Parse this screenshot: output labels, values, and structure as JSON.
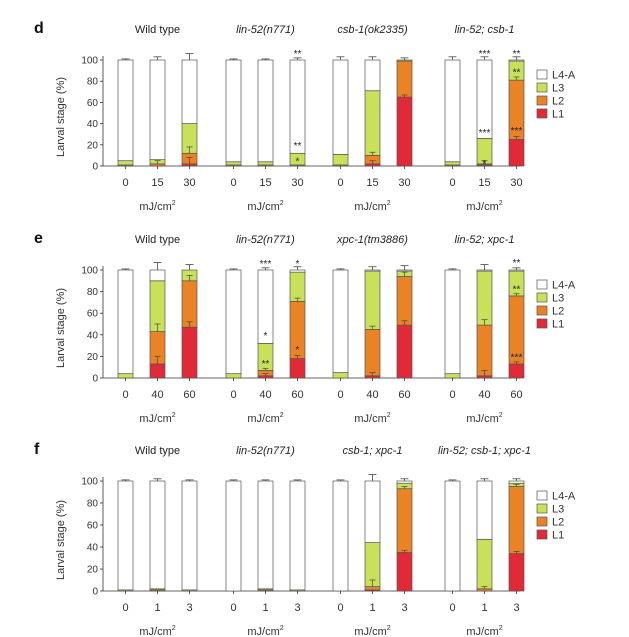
{
  "chart_data": {
    "type": "bar",
    "stacked": true,
    "ylabel": "Larval stage (%)",
    "ylim": [
      0,
      100
    ],
    "yticks": [
      0,
      20,
      40,
      60,
      80,
      100
    ],
    "legend": {
      "placement": "right",
      "entries": [
        {
          "key": "L4A",
          "label": "L4-A",
          "color": "#ffffff"
        },
        {
          "key": "L3",
          "label": "L3",
          "color": "#c9e05b"
        },
        {
          "key": "L2",
          "label": "L2",
          "color": "#ea8226"
        },
        {
          "key": "L1",
          "label": "L1",
          "color": "#e02a37"
        }
      ]
    },
    "colors": {
      "L4A": "#ffffff",
      "L3": "#c9e05b",
      "L2": "#ea8226",
      "L1": "#e02a37",
      "axis": "#333333"
    },
    "panels": [
      {
        "letter": "d",
        "unit_label": "mJ/cm",
        "unit_sup": "2",
        "groups": [
          {
            "title": "Wild type",
            "italic": false,
            "doses": [
              "0",
              "15",
              "30"
            ],
            "bars": [
              {
                "L1": 0,
                "L2": 1,
                "L3": 4,
                "L4A": 95,
                "err": 1,
                "stars": []
              },
              {
                "L1": 0,
                "L2": 2,
                "L3": 4,
                "L4A": 94,
                "err": 3,
                "stars": []
              },
              {
                "L1": 2,
                "L2": 10,
                "L3": 28,
                "L4A": 60,
                "err": 6,
                "stars": []
              }
            ]
          },
          {
            "title": "lin-52(n771)",
            "italic": true,
            "doses": [
              "0",
              "15",
              "30"
            ],
            "bars": [
              {
                "L1": 0,
                "L2": 1,
                "L3": 3,
                "L4A": 96,
                "err": 1,
                "stars": []
              },
              {
                "L1": 0,
                "L2": 1,
                "L3": 3,
                "L4A": 96,
                "err": 1,
                "stars": []
              },
              {
                "L1": 0,
                "L2": 1,
                "L3": 11,
                "L4A": 88,
                "err": 2,
                "stars": [
                  {
                    "text": "**",
                    "at": 100
                  },
                  {
                    "text": "**",
                    "at": 20
                  },
                  {
                    "text": "*",
                    "at": 5
                  }
                ]
              }
            ]
          },
          {
            "title": "csb-1(ok2335)",
            "italic": true,
            "doses": [
              "0",
              "15",
              "30"
            ],
            "bars": [
              {
                "L1": 0,
                "L2": 1,
                "L3": 10,
                "L4A": 89,
                "err": 3,
                "stars": []
              },
              {
                "L1": 2,
                "L2": 8,
                "L3": 61,
                "L4A": 29,
                "err": 3,
                "stars": []
              },
              {
                "L1": 65,
                "L2": 34,
                "L3": 1,
                "L4A": 0,
                "err": 2,
                "stars": []
              }
            ]
          },
          {
            "title": "lin-52; csb-1",
            "italic": true,
            "doses": [
              "0",
              "15",
              "30"
            ],
            "bars": [
              {
                "L1": 0,
                "L2": 1,
                "L3": 3,
                "L4A": 96,
                "err": 3,
                "stars": []
              },
              {
                "L1": 1,
                "L2": 1,
                "L3": 24,
                "L4A": 74,
                "err": 3,
                "stars": [
                  {
                    "text": "***",
                    "at": 100
                  },
                  {
                    "text": "***",
                    "at": 32
                  },
                  {
                    "text": "*",
                    "at": 3
                  }
                ]
              },
              {
                "L1": 25,
                "L2": 56,
                "L3": 18,
                "L4A": 1,
                "err": 3,
                "stars": [
                  {
                    "text": "**",
                    "at": 100
                  },
                  {
                    "text": "**",
                    "at": 89
                  },
                  {
                    "text": "***",
                    "at": 34
                  }
                ]
              }
            ]
          }
        ]
      },
      {
        "letter": "e",
        "unit_label": "mJ/cm",
        "unit_sup": "2",
        "groups": [
          {
            "title": "Wild type",
            "italic": false,
            "doses": [
              "0",
              "40",
              "60"
            ],
            "bars": [
              {
                "L1": 0,
                "L2": 0,
                "L3": 4,
                "L4A": 96,
                "err": 1,
                "stars": []
              },
              {
                "L1": 13,
                "L2": 30,
                "L3": 47,
                "L4A": 10,
                "err": 7,
                "stars": []
              },
              {
                "L1": 47,
                "L2": 43,
                "L3": 10,
                "L4A": 0,
                "err": 5,
                "stars": []
              }
            ]
          },
          {
            "title": "lin-52(n771)",
            "italic": true,
            "doses": [
              "0",
              "40",
              "60"
            ],
            "bars": [
              {
                "L1": 0,
                "L2": 0,
                "L3": 4,
                "L4A": 96,
                "err": 1,
                "stars": []
              },
              {
                "L1": 2,
                "L2": 5,
                "L3": 25,
                "L4A": 68,
                "err": 2,
                "stars": [
                  {
                    "text": "***",
                    "at": 100
                  },
                  {
                    "text": "*",
                    "at": 40
                  },
                  {
                    "text": "**",
                    "at": 14
                  }
                ]
              },
              {
                "L1": 18,
                "L2": 53,
                "L3": 27,
                "L4A": 2,
                "err": 3,
                "stars": [
                  {
                    "text": "*",
                    "at": 100
                  },
                  {
                    "text": "*",
                    "at": 27
                  }
                ]
              }
            ]
          },
          {
            "title": "xpc-1(tm3886)",
            "italic": true,
            "doses": [
              "0",
              "40",
              "60"
            ],
            "bars": [
              {
                "L1": 0,
                "L2": 0,
                "L3": 5,
                "L4A": 95,
                "err": 1,
                "stars": []
              },
              {
                "L1": 2,
                "L2": 43,
                "L3": 54,
                "L4A": 1,
                "err": 3,
                "stars": []
              },
              {
                "L1": 49,
                "L2": 45,
                "L3": 5,
                "L4A": 1,
                "err": 4,
                "stars": []
              }
            ]
          },
          {
            "title": "lin-52; xpc-1",
            "italic": true,
            "doses": [
              "0",
              "40",
              "60"
            ],
            "bars": [
              {
                "L1": 0,
                "L2": 0,
                "L3": 4,
                "L4A": 96,
                "err": 1,
                "stars": []
              },
              {
                "L1": 2,
                "L2": 47,
                "L3": 50,
                "L4A": 1,
                "err": 5,
                "stars": []
              },
              {
                "L1": 13,
                "L2": 63,
                "L3": 23,
                "L4A": 1,
                "err": 2,
                "stars": [
                  {
                    "text": "**",
                    "at": 101
                  },
                  {
                    "text": "**",
                    "at": 83
                  },
                  {
                    "text": "***",
                    "at": 20
                  }
                ]
              }
            ]
          }
        ]
      },
      {
        "letter": "f",
        "unit_label": "mJ/cm",
        "unit_sup": "2",
        "groups": [
          {
            "title": "Wild type",
            "italic": false,
            "doses": [
              "0",
              "1",
              "3"
            ],
            "bars": [
              {
                "L1": 0,
                "L2": 0,
                "L3": 1,
                "L4A": 99,
                "err": 1,
                "stars": []
              },
              {
                "L1": 0,
                "L2": 1,
                "L3": 1,
                "L4A": 98,
                "err": 2,
                "stars": []
              },
              {
                "L1": 0,
                "L2": 0,
                "L3": 1,
                "L4A": 99,
                "err": 1,
                "stars": []
              }
            ]
          },
          {
            "title": "lin-52(n771)",
            "italic": true,
            "doses": [
              "0",
              "1",
              "3"
            ],
            "bars": [
              {
                "L1": 0,
                "L2": 0,
                "L3": 0,
                "L4A": 100,
                "err": 1,
                "stars": []
              },
              {
                "L1": 0,
                "L2": 1,
                "L3": 1,
                "L4A": 98,
                "err": 1,
                "stars": []
              },
              {
                "L1": 0,
                "L2": 0,
                "L3": 1,
                "L4A": 99,
                "err": 1,
                "stars": []
              }
            ]
          },
          {
            "title": "csb-1; xpc-1",
            "italic": true,
            "doses": [
              "0",
              "1",
              "3"
            ],
            "bars": [
              {
                "L1": 0,
                "L2": 0,
                "L3": 0,
                "L4A": 100,
                "err": 1,
                "stars": []
              },
              {
                "L1": 1,
                "L2": 3,
                "L3": 40,
                "L4A": 56,
                "err": 6,
                "stars": []
              },
              {
                "L1": 35,
                "L2": 58,
                "L3": 5,
                "L4A": 2,
                "err": 2,
                "stars": []
              }
            ]
          },
          {
            "title": "lin-52; csb-1; xpc-1",
            "italic": true,
            "doses": [
              "0",
              "1",
              "3"
            ],
            "bars": [
              {
                "L1": 0,
                "L2": 0,
                "L3": 0,
                "L4A": 100,
                "err": 1,
                "stars": []
              },
              {
                "L1": 0,
                "L2": 2,
                "L3": 45,
                "L4A": 53,
                "err": 2,
                "stars": []
              },
              {
                "L1": 34,
                "L2": 61,
                "L3": 3,
                "L4A": 2,
                "err": 2,
                "stars": []
              }
            ]
          }
        ]
      }
    ]
  }
}
